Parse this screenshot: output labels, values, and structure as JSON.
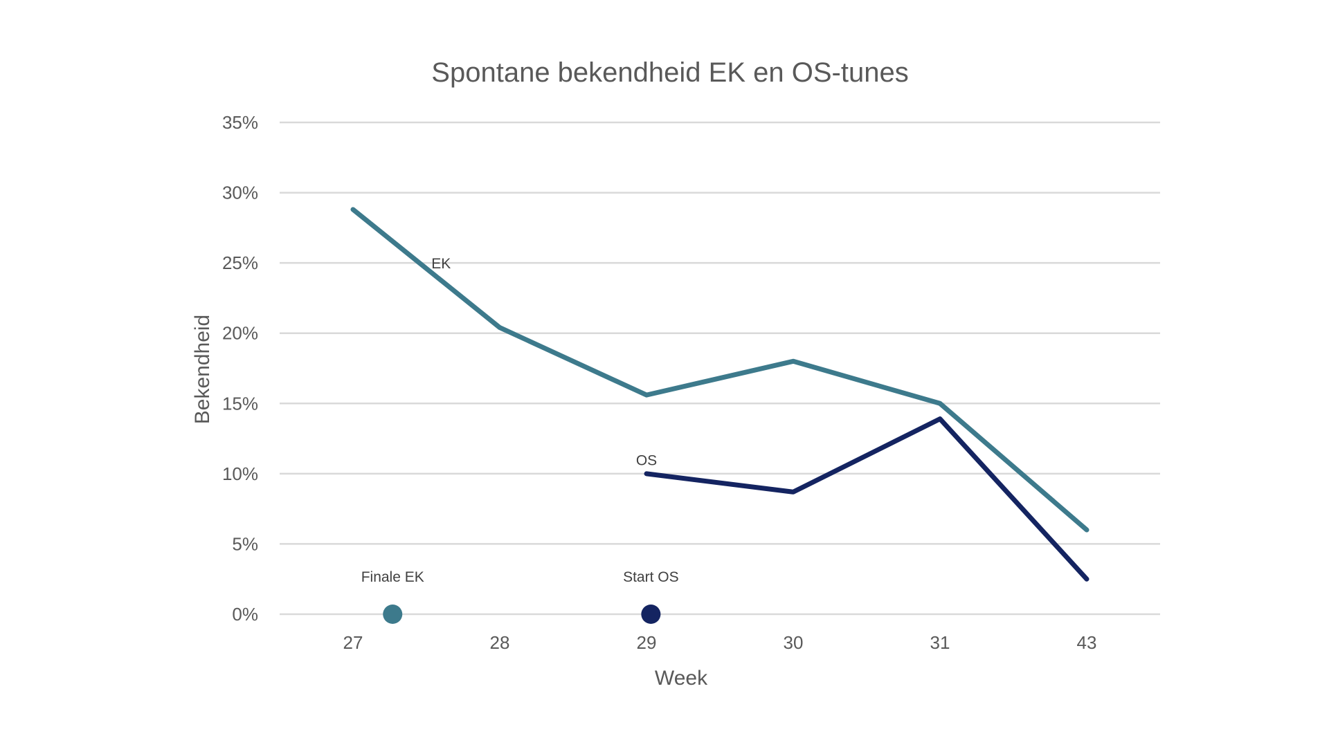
{
  "chart_data": {
    "type": "line",
    "title": "Spontane bekendheid EK en OS-tunes",
    "xlabel": "Week",
    "ylabel": "Bekendheid",
    "categories": [
      "27",
      "28",
      "29",
      "30",
      "31",
      "43"
    ],
    "ylim": [
      0,
      35
    ],
    "yticks": [
      0,
      5,
      10,
      15,
      20,
      25,
      30,
      35
    ],
    "ytick_labels": [
      "0%",
      "5%",
      "10%",
      "15%",
      "20%",
      "25%",
      "30%",
      "35%"
    ],
    "grid": true,
    "legend": "none",
    "series": [
      {
        "name": "EK",
        "color": "#3d7a8c",
        "values": [
          28.8,
          20.4,
          15.6,
          18.0,
          15.0,
          6.0
        ]
      },
      {
        "name": "OS",
        "color": "#142461",
        "values": [
          null,
          null,
          10.0,
          8.7,
          13.9,
          2.5
        ]
      }
    ],
    "series_labels": [
      {
        "text": "EK",
        "series": "EK",
        "x_index": 0.6,
        "y": 25.0
      },
      {
        "text": "OS",
        "series": "OS",
        "x_index": 2.0,
        "y": 11.0
      }
    ],
    "markers": [
      {
        "label": "Finale EK",
        "x_index": 0.27,
        "y": 0,
        "color": "#3d7a8c"
      },
      {
        "label": "Start OS",
        "x_index": 2.03,
        "y": 0,
        "color": "#142461"
      }
    ]
  }
}
